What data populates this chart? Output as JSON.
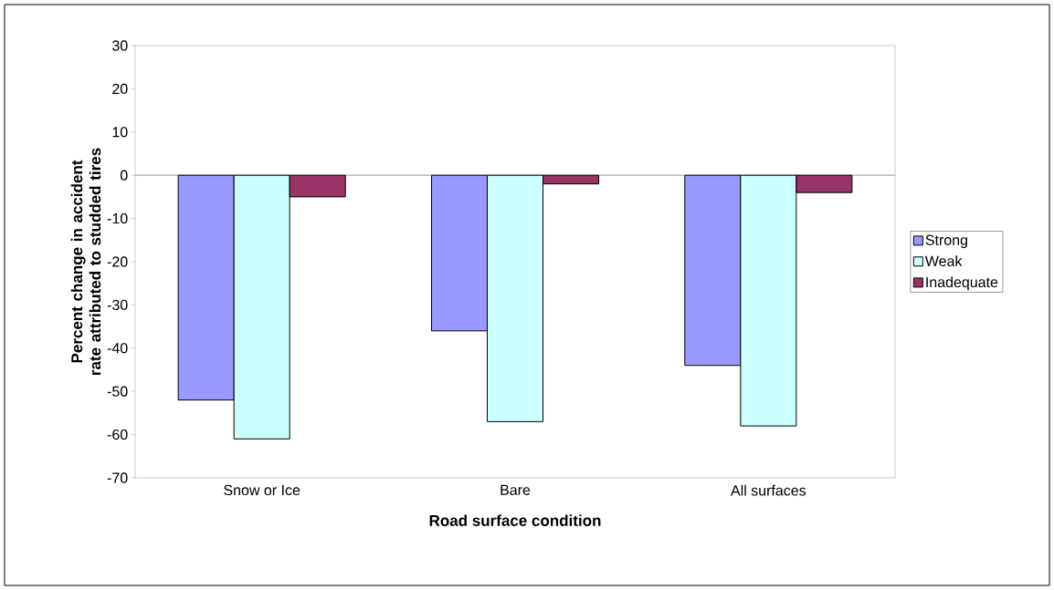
{
  "chart_data": {
    "type": "bar",
    "xlabel": "Road surface condition",
    "ylabel": "Percent change in accident rate attributed to studded tires",
    "categories": [
      "Snow or Ice",
      "Bare",
      "All surfaces"
    ],
    "series": [
      {
        "name": "Strong",
        "color": "#9999ff",
        "values": [
          -52,
          -36,
          -44
        ]
      },
      {
        "name": "Weak",
        "color": "#ccffff",
        "values": [
          -61,
          -57,
          -58
        ]
      },
      {
        "name": "Inadequate",
        "color": "#993366",
        "values": [
          -5,
          -2,
          -4
        ]
      }
    ],
    "ylim": [
      -70,
      30
    ],
    "yticks": [
      -70,
      -60,
      -50,
      -40,
      -30,
      -20,
      -10,
      0,
      10,
      20,
      30
    ],
    "ref_lines": [
      {
        "axis": "y",
        "value": 0,
        "color": "#808080"
      }
    ],
    "legend": "right"
  }
}
